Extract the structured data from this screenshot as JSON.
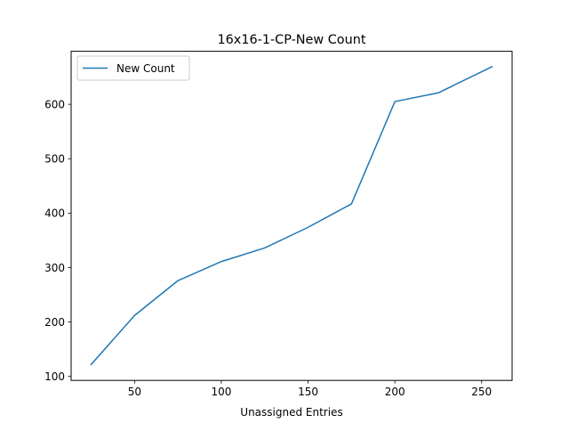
{
  "chart_data": {
    "type": "line",
    "title": "16x16-1-CP-New Count",
    "xlabel": "Unassigned Entries",
    "ylabel": "",
    "xlim": [
      13.45,
      267.55
    ],
    "ylim": [
      92.65,
      697.35
    ],
    "xticks": [
      50,
      100,
      150,
      200,
      250
    ],
    "yticks": [
      100,
      200,
      300,
      400,
      500,
      600
    ],
    "grid": false,
    "legend_position": "upper-left",
    "series": [
      {
        "name": "New Count",
        "color": "#1f77b4",
        "x": [
          25,
          50,
          75,
          100,
          125,
          150,
          175,
          200,
          225,
          256
        ],
        "y": [
          122,
          212,
          276,
          311,
          336,
          374,
          417,
          605,
          621,
          669
        ]
      }
    ]
  }
}
